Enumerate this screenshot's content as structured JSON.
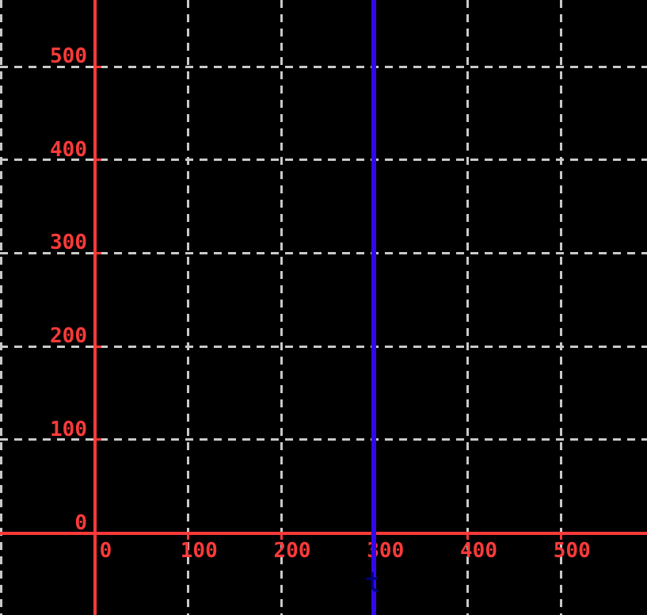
{
  "chart_data": {
    "type": "line",
    "title": "",
    "xlabel": "",
    "ylabel": "",
    "x_ticks": [
      0,
      100,
      200,
      300,
      400,
      500
    ],
    "y_ticks": [
      0,
      100,
      200,
      300,
      400,
      500
    ],
    "xlim": [
      -101.5,
      592.4
    ],
    "ylim": [
      -87.9,
      571.4
    ],
    "grid": true,
    "grid_style": "dashed",
    "grid_x_values": [
      -100,
      100,
      200,
      300,
      400,
      500
    ],
    "grid_y_values": [
      100,
      200,
      300,
      400,
      500
    ],
    "axes": {
      "x_axis_at_y": 0,
      "y_axis_at_x": 0
    },
    "series": [
      {
        "name": "blue-vertical-line",
        "type": "vline",
        "x": 300,
        "y_span": [
          -87.9,
          571.4
        ],
        "color": "#3208f0"
      }
    ],
    "annotations": [
      {
        "name": "hidden-cursor-glyph",
        "text": "t",
        "near_x": 300,
        "near_y": -55,
        "color": "#000080",
        "note": "dark navy glyph drawn over the blue line, barely visible against black"
      }
    ],
    "legend": null
  },
  "colors": {
    "background": "#000000",
    "axis": "#fb3a3a",
    "tick_label": "#fb3a3a",
    "grid": "#c9c9c9",
    "vline": "#3208f0",
    "hidden_glyph": "#000080"
  }
}
